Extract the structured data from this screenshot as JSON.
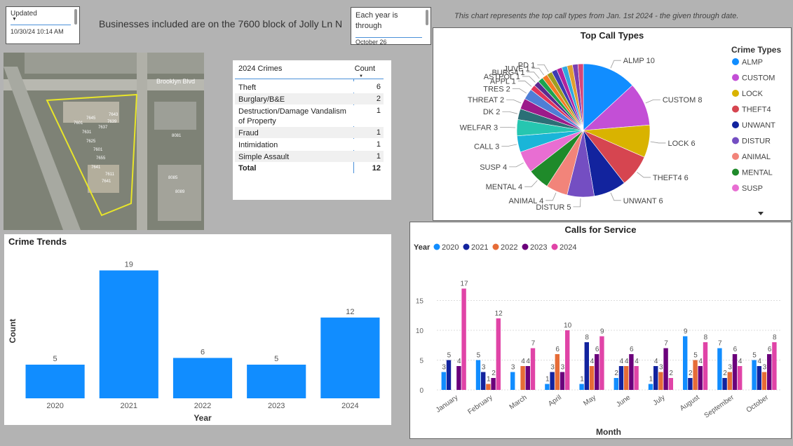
{
  "updated_slicer": {
    "header": "Updated",
    "value": "10/30/24 10:14 AM"
  },
  "banner": "Businesses included are on the 7600 block of Jolly Ln N",
  "year_slicer": {
    "header": "Each year is through",
    "value": "October 26"
  },
  "note": "This chart represents the top call types from Jan. 1st 2024 - the given through date.",
  "map": {
    "street_label": "Brooklyn Blvd",
    "addresses": [
      "7645",
      "7637",
      "7639",
      "7631",
      "7625",
      "7601",
      "7655",
      "7641",
      "7611",
      "7643",
      "7601",
      "7641",
      "8081",
      "8085",
      "8089"
    ]
  },
  "crime_table": {
    "col1": "2024 Crimes",
    "col2": "Count",
    "rows": [
      {
        "label": "Theft",
        "count": "6"
      },
      {
        "label": "Burglary/B&E",
        "count": "2"
      },
      {
        "label": "Destruction/Damage Vandalism of Property",
        "count": "1"
      },
      {
        "label": "Fraud",
        "count": "1"
      },
      {
        "label": "Intimidation",
        "count": "1"
      },
      {
        "label": "Simple Assault",
        "count": "1"
      }
    ],
    "total_label": "Total",
    "total": "12"
  },
  "colors": {
    "bar": "#118dff",
    "y2020": "#118dff",
    "y2021": "#12239e",
    "y2022": "#e66c37",
    "y2023": "#6b007b",
    "y2024": "#e044a7"
  },
  "chart_data": [
    {
      "type": "bar",
      "title": "Crime Trends",
      "xlabel": "Year",
      "ylabel": "Count",
      "categories": [
        "2020",
        "2021",
        "2022",
        "2023",
        "2024"
      ],
      "values": [
        5,
        19,
        6,
        5,
        12
      ],
      "ylim": [
        0,
        20
      ],
      "grid": false
    },
    {
      "type": "pie",
      "title": "Top Call Types",
      "legend_title": "Crime Types",
      "legend_position": "right",
      "legend": [
        {
          "label": "ALMP",
          "color": "#118dff"
        },
        {
          "label": "CUSTOM",
          "color": "#c34fd6"
        },
        {
          "label": "LOCK",
          "color": "#d9b300"
        },
        {
          "label": "THEFT4",
          "color": "#d64550"
        },
        {
          "label": "UNWANT",
          "color": "#12239e"
        },
        {
          "label": "DISTUR",
          "color": "#744ec2"
        },
        {
          "label": "ANIMAL",
          "color": "#f2847a"
        },
        {
          "label": "MENTAL",
          "color": "#1f8a2a"
        },
        {
          "label": "SUSP",
          "color": "#e86ed2"
        }
      ],
      "slices": [
        {
          "label": "ALMP",
          "value": 10,
          "color": "#118dff"
        },
        {
          "label": "CUSTOM",
          "value": 8,
          "color": "#c34fd6"
        },
        {
          "label": "LOCK",
          "value": 6,
          "color": "#d9b300"
        },
        {
          "label": "THEFT4",
          "value": 6,
          "color": "#d64550"
        },
        {
          "label": "UNWANT",
          "value": 6,
          "color": "#12239e"
        },
        {
          "label": "DISTUR",
          "value": 5,
          "color": "#744ec2"
        },
        {
          "label": "ANIMAL",
          "value": 4,
          "color": "#f2847a"
        },
        {
          "label": "MENTAL",
          "value": 4,
          "color": "#1f8a2a"
        },
        {
          "label": "SUSP",
          "value": 4,
          "color": "#e86ed2"
        },
        {
          "label": "CALL",
          "value": 3,
          "color": "#1ab5d8"
        },
        {
          "label": "WELFAR",
          "value": 3,
          "color": "#26c6b0"
        },
        {
          "label": "DK",
          "value": 2,
          "color": "#2b6f76"
        },
        {
          "label": "THREAT",
          "value": 2,
          "color": "#9c1a8a"
        },
        {
          "label": "TRES",
          "value": 2,
          "color": "#4f7ed6"
        },
        {
          "label": "APPL",
          "value": 1,
          "color": "#e0345a"
        },
        {
          "label": "ASTPOL",
          "value": 1,
          "color": "#5c2a8f"
        },
        {
          "label": "BURG4",
          "value": 1,
          "color": "#1da34f"
        },
        {
          "label": "JUVE",
          "value": 1,
          "color": "#f57a24"
        },
        {
          "label": "PD",
          "value": 1,
          "color": "#9e9e20"
        },
        {
          "label": "",
          "value": 1,
          "color": "#3b3bb3"
        },
        {
          "label": "",
          "value": 1,
          "color": "#b3239e"
        },
        {
          "label": "",
          "value": 1,
          "color": "#2fa8e0"
        },
        {
          "label": "",
          "value": 1,
          "color": "#e0a030"
        },
        {
          "label": "",
          "value": 1,
          "color": "#7a3fb0"
        },
        {
          "label": "",
          "value": 1,
          "color": "#d6467a"
        }
      ]
    },
    {
      "type": "bar",
      "title": "Calls for Service",
      "legend_title": "Year",
      "legend_position": "top-left",
      "xlabel": "Month",
      "categories": [
        "January",
        "February",
        "March",
        "April",
        "May",
        "June",
        "July",
        "August",
        "September",
        "October"
      ],
      "series": [
        {
          "name": "2020",
          "values": [
            3,
            5,
            3,
            1,
            1,
            2,
            1,
            9,
            7,
            5
          ]
        },
        {
          "name": "2021",
          "values": [
            5,
            3,
            0,
            3,
            8,
            4,
            4,
            2,
            2,
            4
          ]
        },
        {
          "name": "2022",
          "values": [
            0,
            1,
            4,
            6,
            4,
            4,
            3,
            5,
            3,
            3
          ]
        },
        {
          "name": "2023",
          "values": [
            4,
            2,
            4,
            3,
            6,
            6,
            7,
            4,
            6,
            6
          ]
        },
        {
          "name": "2024",
          "values": [
            17,
            12,
            7,
            10,
            9,
            4,
            2,
            8,
            4,
            8
          ]
        }
      ],
      "ylim": [
        0,
        18
      ],
      "yticks": [
        0,
        5,
        10,
        15
      ],
      "grid": true
    }
  ]
}
